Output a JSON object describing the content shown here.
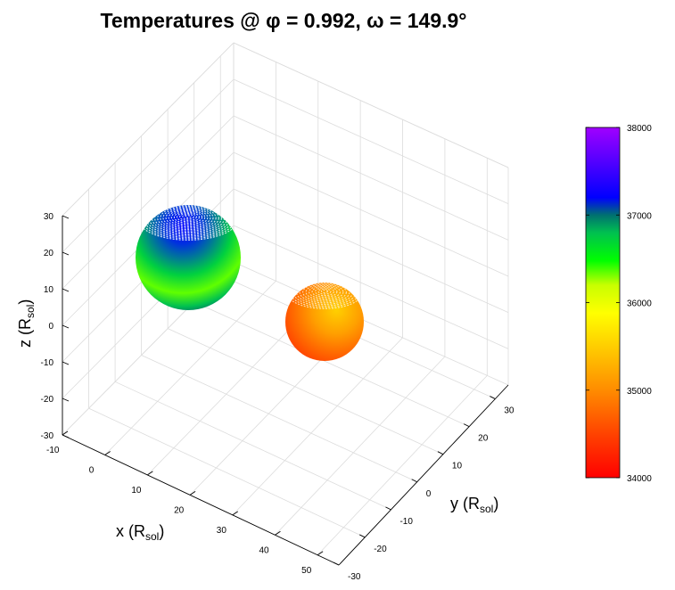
{
  "chart_data": {
    "type": "scatter",
    "title": "Temperatures @ φ = 0.992, ω = 149.9°",
    "xlabel": {
      "main": "x (R",
      "sub": "sol",
      "tail": ")"
    },
    "ylabel": {
      "main": "y (R",
      "sub": "sol",
      "tail": ")"
    },
    "zlabel": {
      "main": "z (R",
      "sub": "sol",
      "tail": ")"
    },
    "xticks": [
      "-10",
      "0",
      "10",
      "20",
      "30",
      "40",
      "50"
    ],
    "yticks": [
      "-30",
      "-20",
      "-10",
      "0",
      "10",
      "20",
      "30"
    ],
    "zticks": [
      "-30",
      "-20",
      "-10",
      "0",
      "10",
      "20",
      "30"
    ],
    "xlim": [
      -10,
      55
    ],
    "ylim": [
      -30,
      35
    ],
    "zlim": [
      -30,
      30
    ],
    "colorbar": {
      "ticks": [
        "34000",
        "35000",
        "36000",
        "37000",
        "38000"
      ],
      "range": [
        34000,
        38000
      ],
      "colormap": "hsv-red-to-violet"
    },
    "series": [
      {
        "center": [
          0,
          0,
          0
        ],
        "radius": 12,
        "temp_min": 35800,
        "temp_max": 37100,
        "temp_hot_side": "pole"
      },
      {
        "center": [
          40,
          0,
          0
        ],
        "radius": 8,
        "temp_min": 34100,
        "temp_max": 34900,
        "temp_hot_side": "inner"
      }
    ],
    "grid": true
  }
}
